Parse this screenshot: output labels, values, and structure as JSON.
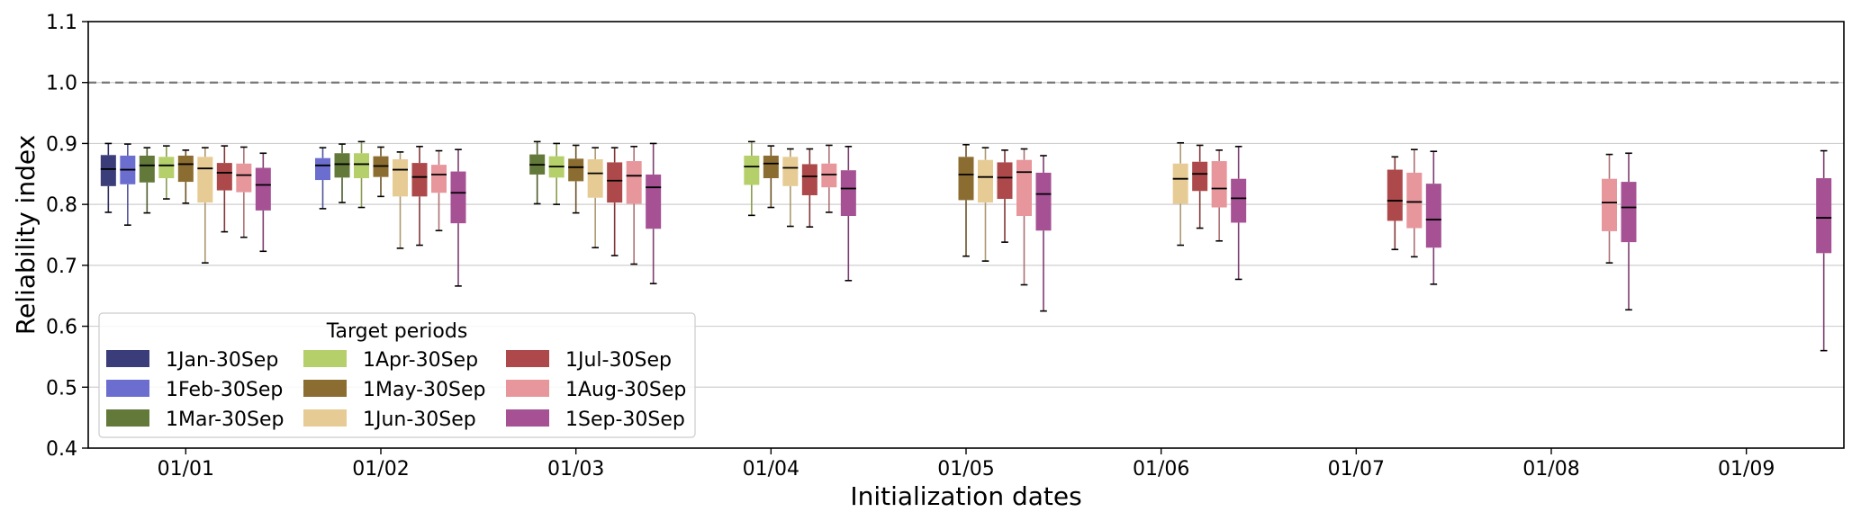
{
  "chart_data": {
    "type": "boxplot",
    "xlabel": "Initialization dates",
    "ylabel": "Reliability index",
    "ylim": [
      0.4,
      1.1
    ],
    "yticks": [
      0.4,
      0.5,
      0.6,
      0.7,
      0.8,
      0.9,
      1.0,
      1.1
    ],
    "ytick_labels": [
      "0.4",
      "0.5",
      "0.6",
      "0.7",
      "0.8",
      "0.9",
      "1.0",
      "1.1"
    ],
    "grid": "horizontal",
    "reference_line": {
      "y": 1.0,
      "style": "dashed",
      "color": "#777777"
    },
    "categories": [
      "01/01",
      "01/02",
      "01/03",
      "01/04",
      "01/05",
      "01/06",
      "01/07",
      "01/08",
      "01/09"
    ],
    "legend": {
      "title": "Target periods",
      "placement": "lower-left",
      "columns": 3
    },
    "series": [
      {
        "name": "1Jan-30Sep",
        "color": "#3b3d7a",
        "boxes": [
          {
            "category": "01/01",
            "whislo": 0.787,
            "q1": 0.83,
            "med": 0.858,
            "q3": 0.881,
            "whishi": 0.9
          }
        ]
      },
      {
        "name": "1Feb-30Sep",
        "color": "#6b6ecf",
        "boxes": [
          {
            "category": "01/01",
            "whislo": 0.766,
            "q1": 0.833,
            "med": 0.857,
            "q3": 0.88,
            "whishi": 0.899
          },
          {
            "category": "01/02",
            "whislo": 0.793,
            "q1": 0.84,
            "med": 0.864,
            "q3": 0.876,
            "whishi": 0.893
          }
        ]
      },
      {
        "name": "1Mar-30Sep",
        "color": "#637939",
        "boxes": [
          {
            "category": "01/01",
            "whislo": 0.786,
            "q1": 0.836,
            "med": 0.864,
            "q3": 0.88,
            "whishi": 0.893
          },
          {
            "category": "01/02",
            "whislo": 0.803,
            "q1": 0.844,
            "med": 0.866,
            "q3": 0.884,
            "whishi": 0.899
          },
          {
            "category": "01/03",
            "whislo": 0.801,
            "q1": 0.849,
            "med": 0.865,
            "q3": 0.882,
            "whishi": 0.903
          }
        ]
      },
      {
        "name": "1Apr-30Sep",
        "color": "#b5cf6b",
        "boxes": [
          {
            "category": "01/01",
            "whislo": 0.809,
            "q1": 0.843,
            "med": 0.864,
            "q3": 0.878,
            "whishi": 0.896
          },
          {
            "category": "01/02",
            "whislo": 0.795,
            "q1": 0.843,
            "med": 0.866,
            "q3": 0.884,
            "whishi": 0.903
          },
          {
            "category": "01/03",
            "whislo": 0.8,
            "q1": 0.844,
            "med": 0.862,
            "q3": 0.879,
            "whishi": 0.9
          },
          {
            "category": "01/04",
            "whislo": 0.782,
            "q1": 0.832,
            "med": 0.862,
            "q3": 0.88,
            "whishi": 0.903
          }
        ]
      },
      {
        "name": "1May-30Sep",
        "color": "#8c6d31",
        "boxes": [
          {
            "category": "01/01",
            "whislo": 0.802,
            "q1": 0.837,
            "med": 0.866,
            "q3": 0.88,
            "whishi": 0.889
          },
          {
            "category": "01/02",
            "whislo": 0.813,
            "q1": 0.845,
            "med": 0.863,
            "q3": 0.879,
            "whishi": 0.894
          },
          {
            "category": "01/03",
            "whislo": 0.786,
            "q1": 0.838,
            "med": 0.861,
            "q3": 0.875,
            "whishi": 0.897
          },
          {
            "category": "01/04",
            "whislo": 0.795,
            "q1": 0.843,
            "med": 0.867,
            "q3": 0.88,
            "whishi": 0.896
          },
          {
            "category": "01/05",
            "whislo": 0.715,
            "q1": 0.807,
            "med": 0.849,
            "q3": 0.878,
            "whishi": 0.898
          }
        ]
      },
      {
        "name": "1Jun-30Sep",
        "color": "#e7cb94",
        "boxes": [
          {
            "category": "01/01",
            "whislo": 0.704,
            "q1": 0.803,
            "med": 0.859,
            "q3": 0.878,
            "whishi": 0.893
          },
          {
            "category": "01/02",
            "whislo": 0.728,
            "q1": 0.813,
            "med": 0.857,
            "q3": 0.874,
            "whishi": 0.886
          },
          {
            "category": "01/03",
            "whislo": 0.729,
            "q1": 0.811,
            "med": 0.851,
            "q3": 0.874,
            "whishi": 0.893
          },
          {
            "category": "01/04",
            "whislo": 0.764,
            "q1": 0.83,
            "med": 0.86,
            "q3": 0.878,
            "whishi": 0.891
          },
          {
            "category": "01/05",
            "whislo": 0.707,
            "q1": 0.803,
            "med": 0.845,
            "q3": 0.873,
            "whishi": 0.893
          },
          {
            "category": "01/06",
            "whislo": 0.733,
            "q1": 0.801,
            "med": 0.842,
            "q3": 0.867,
            "whishi": 0.901
          }
        ]
      },
      {
        "name": "1Jul-30Sep",
        "color": "#ad494a",
        "boxes": [
          {
            "category": "01/01",
            "whislo": 0.755,
            "q1": 0.823,
            "med": 0.852,
            "q3": 0.868,
            "whishi": 0.896
          },
          {
            "category": "01/02",
            "whislo": 0.733,
            "q1": 0.813,
            "med": 0.845,
            "q3": 0.868,
            "whishi": 0.895
          },
          {
            "category": "01/03",
            "whislo": 0.716,
            "q1": 0.803,
            "med": 0.839,
            "q3": 0.869,
            "whishi": 0.893
          },
          {
            "category": "01/04",
            "whislo": 0.763,
            "q1": 0.815,
            "med": 0.846,
            "q3": 0.866,
            "whishi": 0.891
          },
          {
            "category": "01/05",
            "whislo": 0.738,
            "q1": 0.809,
            "med": 0.844,
            "q3": 0.869,
            "whishi": 0.889
          },
          {
            "category": "01/06",
            "whislo": 0.761,
            "q1": 0.822,
            "med": 0.85,
            "q3": 0.87,
            "whishi": 0.897
          },
          {
            "category": "01/07",
            "whislo": 0.726,
            "q1": 0.773,
            "med": 0.806,
            "q3": 0.857,
            "whishi": 0.878
          }
        ]
      },
      {
        "name": "1Aug-30Sep",
        "color": "#e7969c",
        "boxes": [
          {
            "category": "01/01",
            "whislo": 0.746,
            "q1": 0.82,
            "med": 0.848,
            "q3": 0.867,
            "whishi": 0.894
          },
          {
            "category": "01/02",
            "whislo": 0.757,
            "q1": 0.819,
            "med": 0.849,
            "q3": 0.865,
            "whishi": 0.888
          },
          {
            "category": "01/03",
            "whislo": 0.702,
            "q1": 0.801,
            "med": 0.847,
            "q3": 0.871,
            "whishi": 0.895
          },
          {
            "category": "01/04",
            "whislo": 0.787,
            "q1": 0.828,
            "med": 0.849,
            "q3": 0.867,
            "whishi": 0.897
          },
          {
            "category": "01/05",
            "whislo": 0.668,
            "q1": 0.781,
            "med": 0.853,
            "q3": 0.873,
            "whishi": 0.891
          },
          {
            "category": "01/06",
            "whislo": 0.74,
            "q1": 0.795,
            "med": 0.826,
            "q3": 0.871,
            "whishi": 0.889
          },
          {
            "category": "01/07",
            "whislo": 0.714,
            "q1": 0.761,
            "med": 0.804,
            "q3": 0.852,
            "whishi": 0.89
          },
          {
            "category": "01/08",
            "whislo": 0.704,
            "q1": 0.756,
            "med": 0.803,
            "q3": 0.842,
            "whishi": 0.882
          }
        ]
      },
      {
        "name": "1Sep-30Sep",
        "color": "#a55194",
        "boxes": [
          {
            "category": "01/01",
            "whislo": 0.723,
            "q1": 0.79,
            "med": 0.832,
            "q3": 0.86,
            "whishi": 0.884
          },
          {
            "category": "01/02",
            "whislo": 0.666,
            "q1": 0.769,
            "med": 0.819,
            "q3": 0.854,
            "whishi": 0.89
          },
          {
            "category": "01/03",
            "whislo": 0.67,
            "q1": 0.76,
            "med": 0.828,
            "q3": 0.849,
            "whishi": 0.9
          },
          {
            "category": "01/04",
            "whislo": 0.675,
            "q1": 0.781,
            "med": 0.826,
            "q3": 0.856,
            "whishi": 0.895
          },
          {
            "category": "01/05",
            "whislo": 0.625,
            "q1": 0.757,
            "med": 0.817,
            "q3": 0.852,
            "whishi": 0.88
          },
          {
            "category": "01/06",
            "whislo": 0.677,
            "q1": 0.77,
            "med": 0.81,
            "q3": 0.842,
            "whishi": 0.895
          },
          {
            "category": "01/07",
            "whislo": 0.669,
            "q1": 0.729,
            "med": 0.775,
            "q3": 0.834,
            "whishi": 0.887
          },
          {
            "category": "01/08",
            "whislo": 0.627,
            "q1": 0.738,
            "med": 0.795,
            "q3": 0.837,
            "whishi": 0.884
          },
          {
            "category": "01/09",
            "whislo": 0.56,
            "q1": 0.72,
            "med": 0.778,
            "q3": 0.843,
            "whishi": 0.888
          }
        ]
      }
    ]
  }
}
